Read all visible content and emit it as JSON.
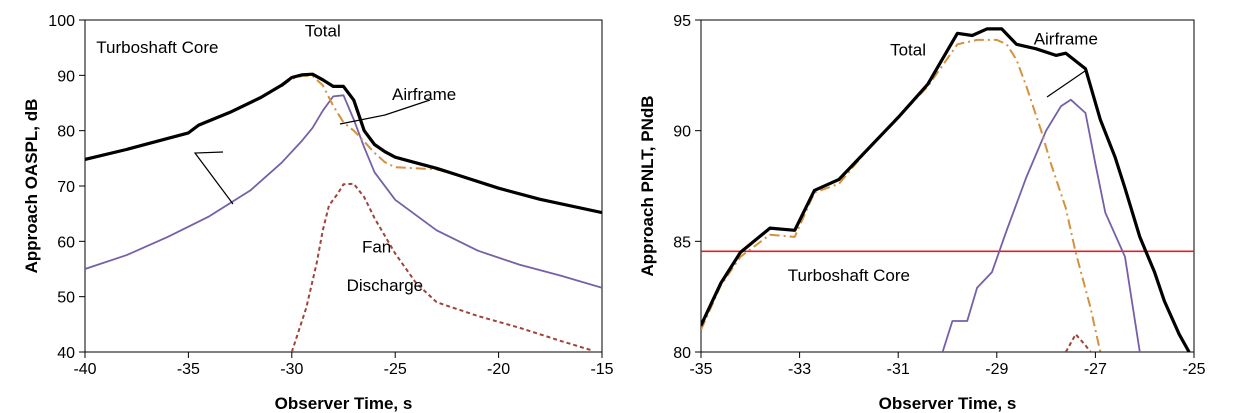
{
  "chart_data": [
    {
      "type": "line",
      "xlabel": "Observer Time, s",
      "ylabel": "Approach OASPL, dB",
      "xlim": [
        -40,
        -15
      ],
      "ylim": [
        40,
        100
      ],
      "xticks": [
        -40,
        -35,
        -30,
        -25,
        -20,
        -15
      ],
      "yticks": [
        40,
        50,
        60,
        70,
        80,
        90,
        100
      ],
      "grid": false,
      "series": [
        {
          "name": "Total",
          "color": "#000000",
          "style": "solid-thick",
          "points": [
            [
              -40,
              74.8
            ],
            [
              -38,
              76.6
            ],
            [
              -36,
              78.6
            ],
            [
              -35,
              79.6
            ],
            [
              -34.5,
              81
            ],
            [
              -33,
              83.3
            ],
            [
              -31.5,
              86
            ],
            [
              -30.5,
              88.2
            ],
            [
              -30,
              89.6
            ],
            [
              -29.5,
              90.1
            ],
            [
              -29,
              90.2
            ],
            [
              -28.5,
              89.2
            ],
            [
              -28,
              88
            ],
            [
              -27.5,
              88
            ],
            [
              -27,
              85.5
            ],
            [
              -26.5,
              80
            ],
            [
              -26,
              77.5
            ],
            [
              -25.5,
              76.2
            ],
            [
              -25,
              75.2
            ],
            [
              -24,
              74.2
            ],
            [
              -23,
              73.2
            ],
            [
              -22,
              72
            ],
            [
              -20,
              69.6
            ],
            [
              -18,
              67.6
            ],
            [
              -15,
              65.2
            ]
          ]
        },
        {
          "name": "Airframe",
          "color": "#d4913f",
          "style": "dash-dot",
          "points": [
            [
              -30.5,
              88
            ],
            [
              -30,
              89.4
            ],
            [
              -29.5,
              89.9
            ],
            [
              -29,
              89.9
            ],
            [
              -28.5,
              88.2
            ],
            [
              -28,
              84.5
            ],
            [
              -27.5,
              81.5
            ],
            [
              -27,
              80
            ],
            [
              -26.5,
              78
            ],
            [
              -26,
              76
            ],
            [
              -25.5,
              74.3
            ],
            [
              -25,
              73.4
            ],
            [
              -23,
              73
            ],
            [
              -22,
              72
            ],
            [
              -20,
              69.6
            ],
            [
              -18,
              67.6
            ],
            [
              -15,
              65.2
            ]
          ]
        },
        {
          "name": "Turboshaft Core",
          "color": "#7560a8",
          "style": "solid",
          "points": [
            [
              -40,
              55
            ],
            [
              -38,
              57.5
            ],
            [
              -36,
              60.8
            ],
            [
              -34,
              64.5
            ],
            [
              -32,
              69.2
            ],
            [
              -30.5,
              74.2
            ],
            [
              -29.5,
              78.2
            ],
            [
              -29,
              80.5
            ],
            [
              -28.5,
              83.6
            ],
            [
              -28,
              86.2
            ],
            [
              -27.5,
              86.4
            ],
            [
              -27,
              82
            ],
            [
              -26.5,
              77
            ],
            [
              -26,
              72.5
            ],
            [
              -25,
              67.5
            ],
            [
              -23,
              62
            ],
            [
              -21,
              58.3
            ],
            [
              -19,
              55.8
            ],
            [
              -17,
              53.8
            ],
            [
              -15,
              51.6
            ]
          ]
        },
        {
          "name": "Fan Discharge",
          "color": "#a0433a",
          "style": "dashed",
          "points": [
            [
              -30,
              40
            ],
            [
              -29.3,
              48
            ],
            [
              -28.8,
              56
            ],
            [
              -28.5,
              62
            ],
            [
              -28.2,
              66.5
            ],
            [
              -27.8,
              68.5
            ],
            [
              -27.5,
              70.3
            ],
            [
              -27,
              70.4
            ],
            [
              -26.5,
              68
            ],
            [
              -26,
              64.2
            ],
            [
              -25,
              57.8
            ],
            [
              -24,
              52.5
            ],
            [
              -23,
              49
            ],
            [
              -21,
              46.5
            ],
            [
              -19,
              44.4
            ],
            [
              -17,
              42
            ],
            [
              -15.5,
              40.3
            ]
          ]
        }
      ],
      "annotations": [
        {
          "text": "Total",
          "x": -28.5,
          "y": 97
        },
        {
          "text": "Turboshaft Core",
          "x": -36.5,
          "y": 94
        },
        {
          "text": "Airframe",
          "x": -23.6,
          "y": 85.5
        },
        {
          "text": "Fan",
          "x": -25.9,
          "y": 58
        },
        {
          "text": "Discharge",
          "x": -25.5,
          "y": 51
        }
      ]
    },
    {
      "type": "line",
      "xlabel": "Observer Time, s",
      "ylabel": "Approach PNLT, PNdB",
      "xlim": [
        -35,
        -25
      ],
      "ylim": [
        80,
        95
      ],
      "xticks": [
        -35,
        -33,
        -31,
        -29,
        -27,
        -25
      ],
      "yticks": [
        80,
        85,
        90,
        95
      ],
      "grid": false,
      "reference_line": {
        "y": 84.55,
        "color": "#e02020"
      },
      "series": [
        {
          "name": "Total",
          "color": "#000000",
          "style": "solid-thick",
          "points": [
            [
              -35,
              81.2
            ],
            [
              -34.6,
              83.1
            ],
            [
              -34.2,
              84.5
            ],
            [
              -33.6,
              85.6
            ],
            [
              -33.1,
              85.5
            ],
            [
              -32.7,
              87.3
            ],
            [
              -32.2,
              87.8
            ],
            [
              -31.6,
              89.2
            ],
            [
              -31,
              90.6
            ],
            [
              -30.4,
              92.1
            ],
            [
              -29.8,
              94.4
            ],
            [
              -29.5,
              94.3
            ],
            [
              -29.2,
              94.6
            ],
            [
              -28.9,
              94.6
            ],
            [
              -28.6,
              93.9
            ],
            [
              -28.2,
              93.7
            ],
            [
              -27.8,
              93.4
            ],
            [
              -27.6,
              93.5
            ],
            [
              -27.2,
              92.8
            ],
            [
              -26.9,
              90.5
            ],
            [
              -26.6,
              88.8
            ],
            [
              -26.4,
              87.4
            ],
            [
              -26.1,
              85.2
            ],
            [
              -25.8,
              83.6
            ],
            [
              -25.6,
              82.3
            ],
            [
              -25.3,
              80.8
            ],
            [
              -25.1,
              80
            ]
          ]
        },
        {
          "name": "Airframe",
          "color": "#d4913f",
          "style": "dash-dot",
          "points": [
            [
              -35,
              81
            ],
            [
              -34.6,
              83
            ],
            [
              -34.2,
              84.3
            ],
            [
              -33.6,
              85.3
            ],
            [
              -33.1,
              85.2
            ],
            [
              -32.7,
              87.2
            ],
            [
              -32.2,
              87.6
            ],
            [
              -31.6,
              89.2
            ],
            [
              -31,
              90.6
            ],
            [
              -30.4,
              92
            ],
            [
              -29.8,
              93.9
            ],
            [
              -29.4,
              94.1
            ],
            [
              -29,
              94.1
            ],
            [
              -28.8,
              93.9
            ],
            [
              -28.6,
              93.2
            ],
            [
              -28.4,
              92
            ],
            [
              -28.1,
              90
            ],
            [
              -27.9,
              88.5
            ],
            [
              -27.6,
              86.5
            ],
            [
              -27.4,
              84.5
            ],
            [
              -27.1,
              82
            ],
            [
              -26.9,
              80
            ]
          ]
        },
        {
          "name": "Turboshaft Core",
          "color": "#7560a8",
          "style": "solid",
          "points": [
            [
              -30.1,
              80
            ],
            [
              -29.9,
              81.4
            ],
            [
              -29.6,
              81.4
            ],
            [
              -29.4,
              82.9
            ],
            [
              -29.1,
              83.6
            ],
            [
              -28.8,
              85.5
            ],
            [
              -28.4,
              87.9
            ],
            [
              -28,
              90
            ],
            [
              -27.7,
              91.1
            ],
            [
              -27.5,
              91.4
            ],
            [
              -27.2,
              90.8
            ],
            [
              -27,
              88.5
            ],
            [
              -26.8,
              86.3
            ],
            [
              -26.4,
              84.3
            ],
            [
              -26.1,
              80
            ]
          ]
        },
        {
          "name": "Fan Discharge",
          "color": "#a0433a",
          "style": "dashed",
          "points": [
            [
              -27.6,
              80
            ],
            [
              -27.4,
              80.8
            ],
            [
              -27.2,
              80.3
            ],
            [
              -27.1,
              80
            ]
          ]
        }
      ],
      "annotations": [
        {
          "text": "Total",
          "x": -30.8,
          "y": 93.4
        },
        {
          "text": "Airframe",
          "x": -27.6,
          "y": 93.9
        },
        {
          "text": "Turboshaft Core",
          "x": -32,
          "y": 83.2
        }
      ]
    }
  ]
}
